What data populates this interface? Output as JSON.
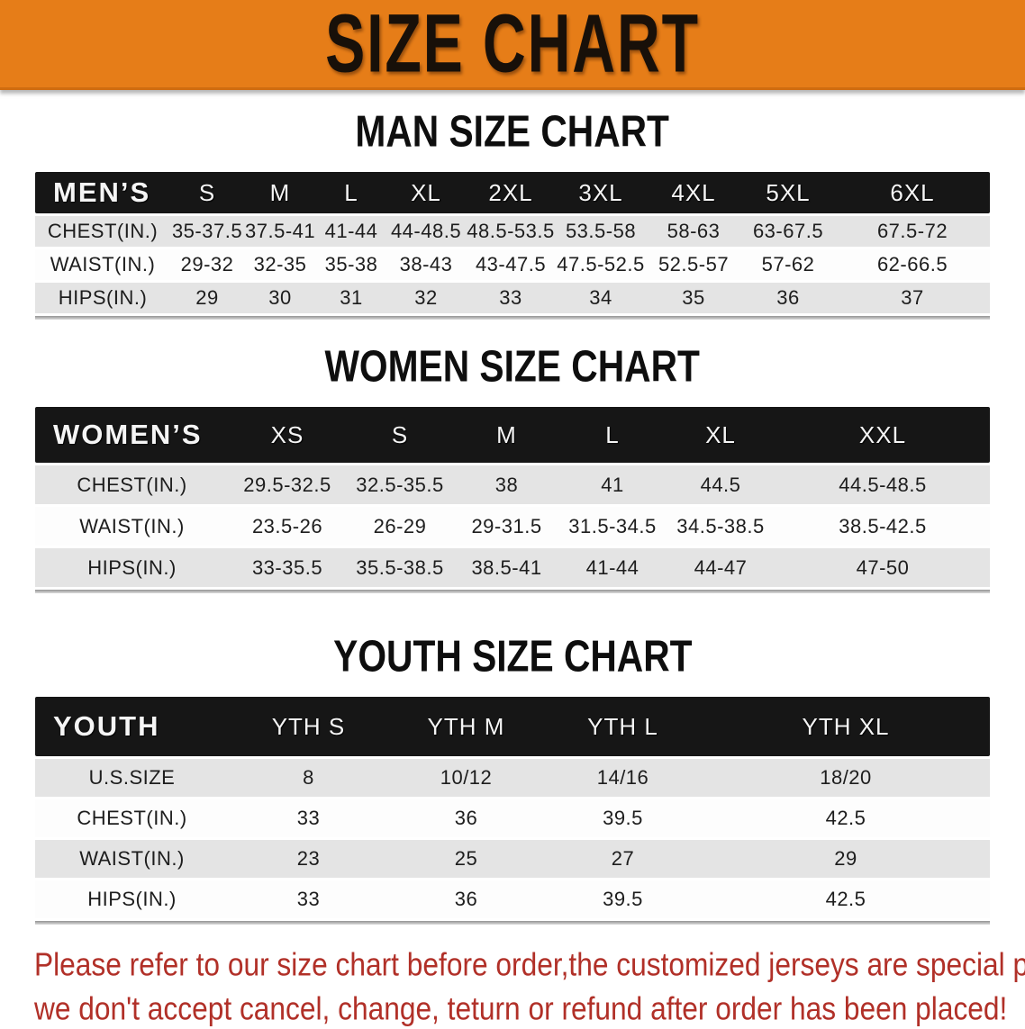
{
  "banner": {
    "title": "SIZE CHART",
    "bg_color": "#e67d18"
  },
  "sections": [
    {
      "id": "men",
      "heading": "MAN SIZE CHART",
      "corner_label": "MEN’S",
      "columns": [
        "S",
        "M",
        "L",
        "XL",
        "2XL",
        "3XL",
        "4XL",
        "5XL",
        "6XL"
      ],
      "rows": [
        {
          "label": "CHEST(IN.)",
          "values": [
            "35-37.5",
            "37.5-41",
            "41-44",
            "44-48.5",
            "48.5-53.5",
            "53.5-58",
            "58-63",
            "63-67.5",
            "67.5-72"
          ]
        },
        {
          "label": "WAIST(IN.)",
          "values": [
            "29-32",
            "32-35",
            "35-38",
            "38-43",
            "43-47.5",
            "47.5-52.5",
            "52.5-57",
            "57-62",
            "62-66.5"
          ]
        },
        {
          "label": "HIPS(IN.)",
          "values": [
            "29",
            "30",
            "31",
            "32",
            "33",
            "34",
            "35",
            "36",
            "37"
          ]
        }
      ]
    },
    {
      "id": "women",
      "heading": "WOMEN SIZE CHART",
      "corner_label": "WOMEN’S",
      "columns": [
        "XS",
        "S",
        "M",
        "L",
        "XL",
        "XXL"
      ],
      "rows": [
        {
          "label": "CHEST(IN.)",
          "values": [
            "29.5-32.5",
            "32.5-35.5",
            "38",
            "41",
            "44.5",
            "44.5-48.5"
          ]
        },
        {
          "label": "WAIST(IN.)",
          "values": [
            "23.5-26",
            "26-29",
            "29-31.5",
            "31.5-34.5",
            "34.5-38.5",
            "38.5-42.5"
          ]
        },
        {
          "label": "HIPS(IN.)",
          "values": [
            "33-35.5",
            "35.5-38.5",
            "38.5-41",
            "41-44",
            "44-47",
            "47-50"
          ]
        }
      ]
    },
    {
      "id": "youth",
      "heading": "YOUTH SIZE CHART",
      "corner_label": "YOUTH",
      "columns": [
        "YTH S",
        "YTH M",
        "YTH L",
        "YTH XL"
      ],
      "rows": [
        {
          "label": "U.S.SIZE",
          "values": [
            "8",
            "10/12",
            "14/16",
            "18/20"
          ]
        },
        {
          "label": "CHEST(IN.)",
          "values": [
            "33",
            "36",
            "39.5",
            "42.5"
          ]
        },
        {
          "label": "WAIST(IN.)",
          "values": [
            "23",
            "25",
            "27",
            "29"
          ]
        },
        {
          "label": "HIPS(IN.)",
          "values": [
            "33",
            "36",
            "39.5",
            "42.5"
          ]
        }
      ]
    }
  ],
  "disclaimer": {
    "line1": "Please refer to our size chart before order,the customized jerseys are special products,",
    "line2": "we don't accept cancel, change, teturn or refund after order has been placed!",
    "color": "#b13028"
  }
}
